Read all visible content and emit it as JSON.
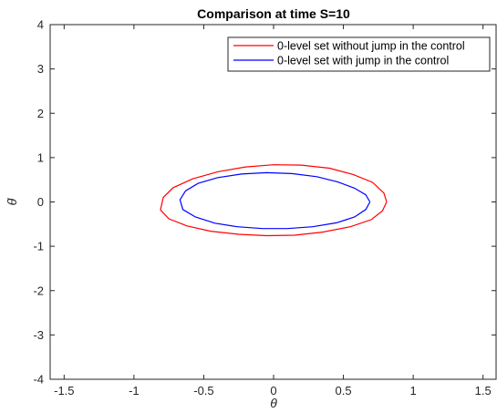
{
  "chart_data": {
    "type": "line",
    "title": "Comparison at time S=10",
    "xlabel": "θ",
    "ylabel": "θ̇",
    "xlim": [
      -1.6,
      1.6
    ],
    "ylim": [
      -4,
      4
    ],
    "xticks": [
      "-1.5",
      "-1",
      "-0.5",
      "0",
      "0.5",
      "1",
      "1.5"
    ],
    "yticks": [
      "-4",
      "-3",
      "-2",
      "-1",
      "0",
      "1",
      "2",
      "3",
      "4"
    ],
    "xtick_values": [
      -1.5,
      -1,
      -0.5,
      0,
      0.5,
      1,
      1.5
    ],
    "ytick_values": [
      -4,
      -3,
      -2,
      -1,
      0,
      1,
      2,
      3,
      4
    ],
    "grid": false,
    "legend_position": "top-right",
    "series": [
      {
        "name": "0-level set without jump in the control",
        "color": "#ff0000",
        "x": [
          0.81,
          0.78,
          0.7,
          0.55,
          0.35,
          0.15,
          -0.05,
          -0.25,
          -0.45,
          -0.62,
          -0.75,
          -0.81,
          -0.79,
          -0.72,
          -0.58,
          -0.4,
          -0.2,
          0.0,
          0.2,
          0.4,
          0.57,
          0.71,
          0.79,
          0.81
        ],
        "y": [
          0.0,
          -0.2,
          -0.4,
          -0.56,
          -0.68,
          -0.75,
          -0.76,
          -0.73,
          -0.66,
          -0.54,
          -0.38,
          -0.18,
          0.1,
          0.32,
          0.52,
          0.68,
          0.79,
          0.84,
          0.83,
          0.76,
          0.62,
          0.44,
          0.2,
          0.0
        ]
      },
      {
        "name": "0-level set with jump in the control",
        "color": "#0000ff",
        "x": [
          0.69,
          0.66,
          0.58,
          0.45,
          0.28,
          0.1,
          -0.08,
          -0.26,
          -0.42,
          -0.56,
          -0.65,
          -0.67,
          -0.63,
          -0.54,
          -0.4,
          -0.23,
          -0.05,
          0.13,
          0.31,
          0.46,
          0.58,
          0.66,
          0.69
        ],
        "y": [
          0.0,
          -0.17,
          -0.34,
          -0.47,
          -0.56,
          -0.6,
          -0.6,
          -0.56,
          -0.48,
          -0.34,
          -0.17,
          0.05,
          0.25,
          0.42,
          0.55,
          0.63,
          0.66,
          0.64,
          0.57,
          0.45,
          0.31,
          0.16,
          0.0
        ]
      }
    ]
  }
}
